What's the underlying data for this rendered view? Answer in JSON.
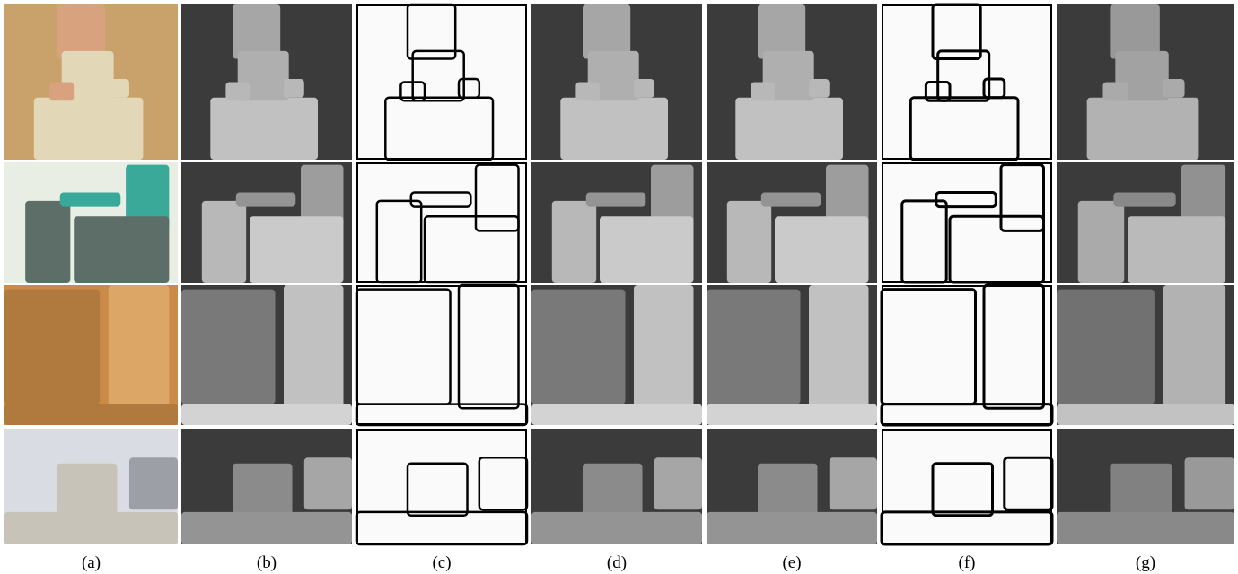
{
  "figure": {
    "panel_labels": [
      "(a)",
      "(b)",
      "(c)",
      "(d)",
      "(e)",
      "(f)",
      "(g)"
    ]
  }
}
